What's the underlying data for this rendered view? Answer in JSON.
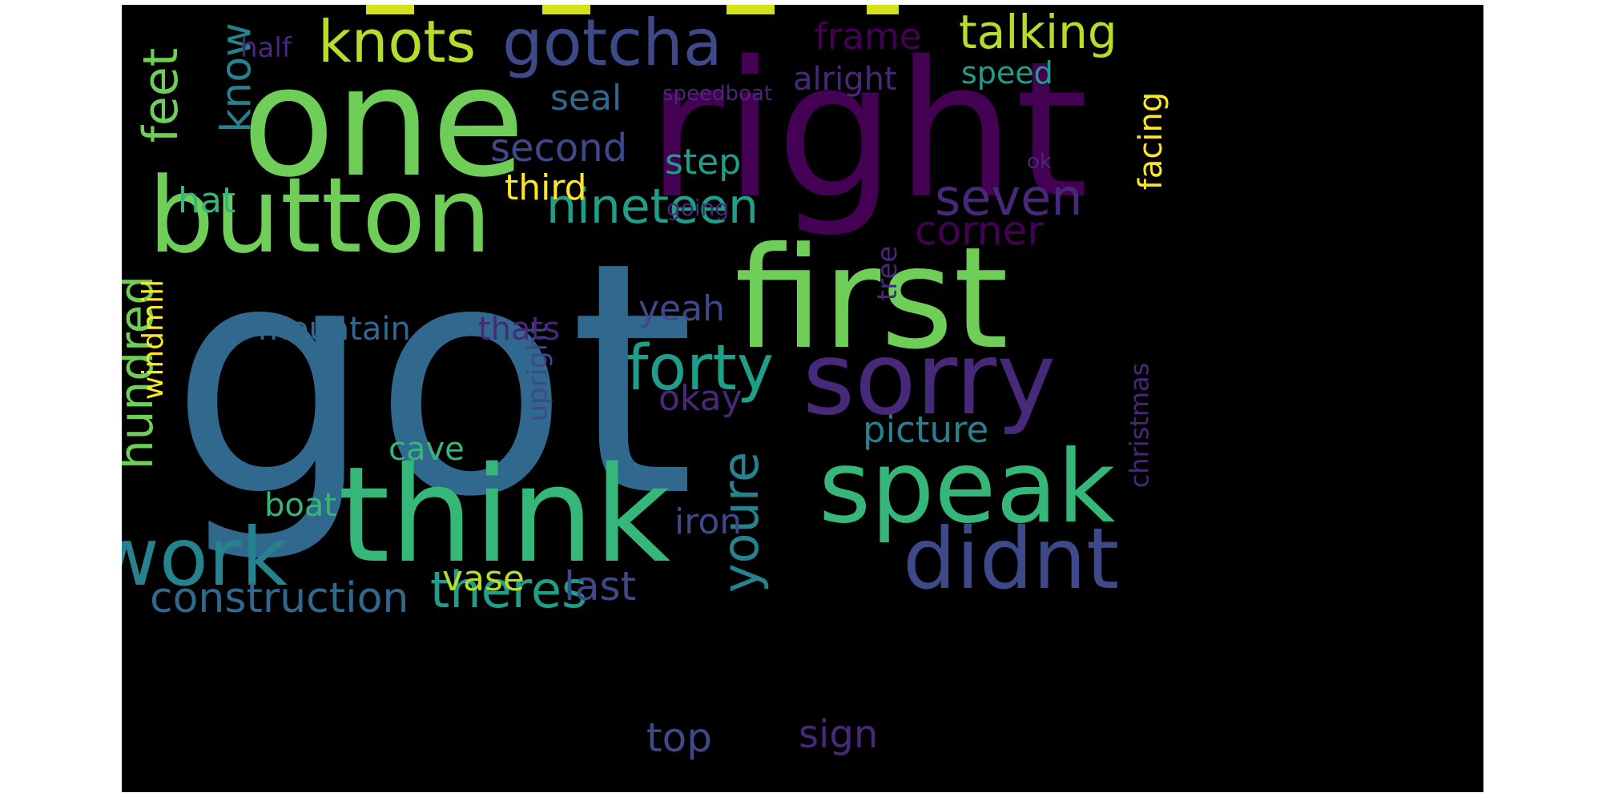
{
  "words": {
    "got": "got",
    "right": "right",
    "one": "one",
    "first": "first",
    "think": "think",
    "button": "button",
    "sorry": "sorry",
    "speak": "speak",
    "didnt": "didnt",
    "work": "work",
    "knots": "knots",
    "gotcha": "gotcha",
    "seven": "seven",
    "forty": "forty",
    "nineteen": "nineteen",
    "talking": "talking",
    "corner": "corner",
    "theres": "theres",
    "construction": "construction",
    "youre": "youre",
    "hundred": "hundred",
    "feet": "feet",
    "know": "know",
    "frame": "frame",
    "picture": "picture",
    "second": "second",
    "third": "third",
    "step": "step",
    "yeah": "yeah",
    "okay": "okay",
    "last": "last",
    "top": "top",
    "iron": "iron",
    "vase": "vase",
    "mountain": "mountain",
    "thats": "thats",
    "windmill": "windmill",
    "upright": "upright",
    "cave": "cave",
    "boat": "boat",
    "hat": "hat",
    "seal": "seal",
    "alright": "alright",
    "speed": "speed",
    "speedboat": "speedboat",
    "half": "half",
    "facing": "facing",
    "sign": "sign",
    "christmas": "christmas",
    "tree": "tree",
    "going": "going",
    "ok": "ok"
  },
  "colors": {
    "background": "#000000",
    "page": "#ffffff",
    "dark_purple": "#440154",
    "indigo": "#482878",
    "deep_blue": "#3e4989",
    "blue": "#31688e",
    "teal": "#26828e",
    "teal_green": "#1f9e89",
    "green": "#35b779",
    "lime": "#6ece58",
    "yellow_green": "#b5de2b",
    "yellow": "#fde725"
  }
}
